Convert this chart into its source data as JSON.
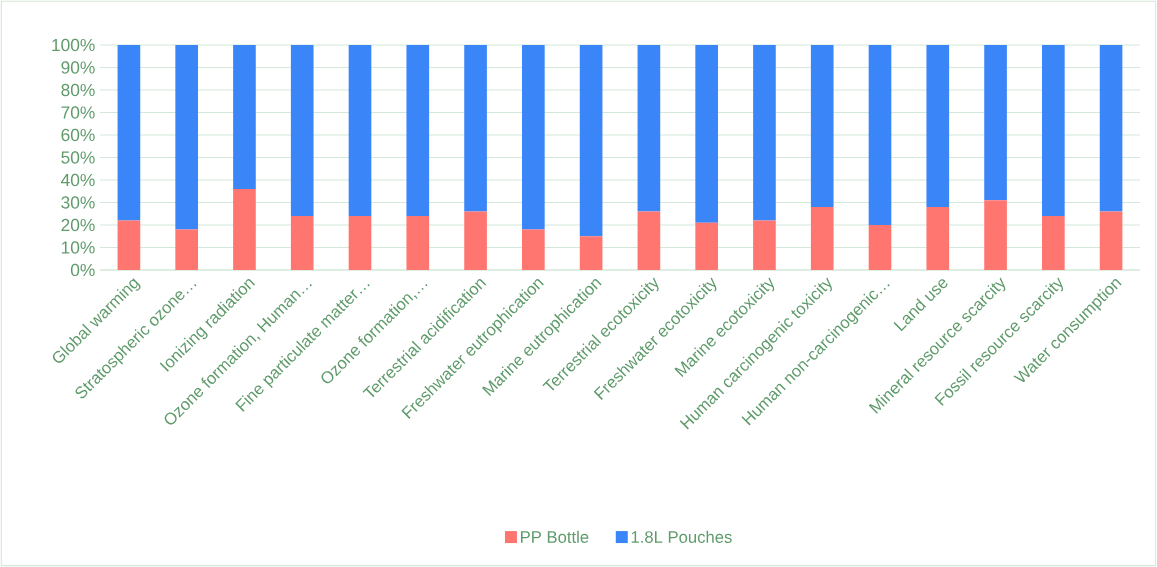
{
  "chart_data": {
    "type": "bar",
    "stacked": true,
    "categories": [
      "Global warming",
      "Stratospheric ozone…",
      "Ionizing radiation",
      "Ozone formation, Human…",
      "Fine particulate matter…",
      "Ozone formation,…",
      "Terrestrial acidification",
      "Freshwater eutrophication",
      "Marine eutrophication",
      "Terrestrial ecotoxicity",
      "Freshwater ecotoxicity",
      "Marine ecotoxicity",
      "Human carcinogenic toxicity",
      "Human non-carcinogenic…",
      "Land use",
      "Mineral resource scarcity",
      "Fossil resource scarcity",
      "Water consumption"
    ],
    "series": [
      {
        "name": "PP Bottle",
        "color": "#ff7670",
        "values": [
          22,
          18,
          36,
          24,
          24,
          24,
          26,
          18,
          15,
          26,
          21,
          22,
          28,
          20,
          28,
          31,
          24,
          26
        ]
      },
      {
        "name": "1.8L Pouches",
        "color": "#3a86f9",
        "values": [
          78,
          82,
          64,
          76,
          76,
          76,
          74,
          82,
          85,
          74,
          79,
          78,
          72,
          80,
          72,
          69,
          76,
          74
        ]
      }
    ],
    "ylim": [
      0,
      100
    ],
    "yticks": [
      {
        "value": 0,
        "label": "0%"
      },
      {
        "value": 10,
        "label": "10%"
      },
      {
        "value": 20,
        "label": "20%"
      },
      {
        "value": 30,
        "label": "30%"
      },
      {
        "value": 40,
        "label": "40%"
      },
      {
        "value": 50,
        "label": "50%"
      },
      {
        "value": 60,
        "label": "60%"
      },
      {
        "value": 70,
        "label": "70%"
      },
      {
        "value": 80,
        "label": "80%"
      },
      {
        "value": 90,
        "label": "90%"
      },
      {
        "value": 100,
        "label": "100%"
      }
    ],
    "grid": "y",
    "legend": "bottom"
  }
}
